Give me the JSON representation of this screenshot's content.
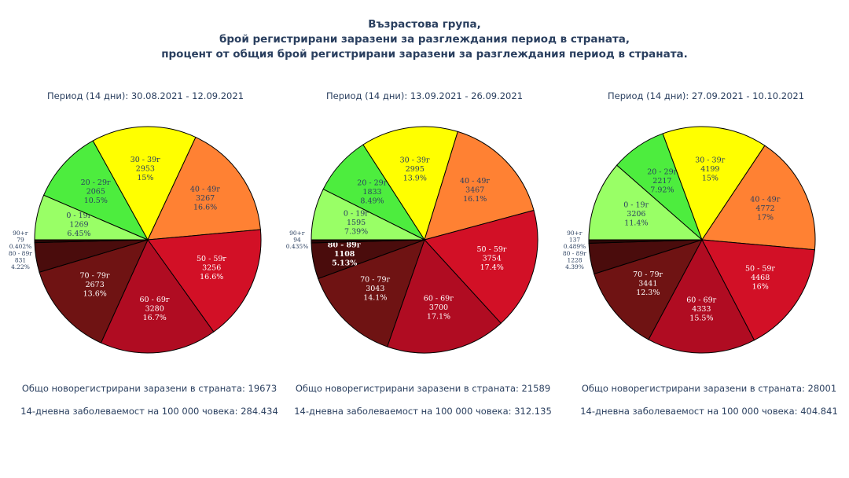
{
  "title": {
    "line1": "Възрастова група,",
    "line2": "брой регистрирани заразени за разглеждания период в страната,",
    "line3": "процент от общия брой регистрирани заразени за разглеждания период в страната."
  },
  "chart_data": [
    {
      "type": "pie",
      "title": "Период (14 дни): 30.08.2021 - 12.09.2021",
      "categories": [
        "0 - 19г",
        "20 - 29г",
        "30 - 39г",
        "40 - 49г",
        "50 - 59г",
        "60 - 69г",
        "70 - 79г",
        "80 - 89г",
        "90+г"
      ],
      "values": [
        1269,
        2065,
        2953,
        3267,
        3256,
        3280,
        2673,
        831,
        79
      ],
      "percents": [
        "6.45%",
        "10.5%",
        "15%",
        "16.6%",
        "16.6%",
        "16.7%",
        "13.6%",
        "4.22%",
        "0.402%"
      ],
      "total_label": "Общо новорегистрирани заразени в страната: 19673",
      "incidence_label": "14-дневна заболеваемост на 100 000 човека: 284.434"
    },
    {
      "type": "pie",
      "title": "Период (14 дни): 13.09.2021 - 26.09.2021",
      "categories": [
        "0 - 19г",
        "20 - 29г",
        "30 - 39г",
        "40 - 49г",
        "50 - 59г",
        "60 - 69г",
        "70 - 79г",
        "80 - 89г",
        "90+г"
      ],
      "values": [
        1595,
        1833,
        2995,
        3467,
        3754,
        3700,
        3043,
        1108,
        94
      ],
      "percents": [
        "7.39%",
        "8.49%",
        "13.9%",
        "16.1%",
        "17.4%",
        "17.1%",
        "14.1%",
        "5.13%",
        "0.435%"
      ],
      "total_label": "Общо новорегистрирани заразени в страната: 21589",
      "incidence_label": "14-дневна заболеваемост на 100 000 човека: 312.135"
    },
    {
      "type": "pie",
      "title": "Период (14 дни): 27.09.2021 - 10.10.2021",
      "categories": [
        "0 - 19г",
        "20 - 29г",
        "30 - 39г",
        "40 - 49г",
        "50 - 59г",
        "60 - 69г",
        "70 - 79г",
        "80 - 89г",
        "90+г"
      ],
      "values": [
        3206,
        2217,
        4199,
        4772,
        4468,
        4333,
        3441,
        1228,
        137
      ],
      "percents": [
        "11.4%",
        "7.92%",
        "15%",
        "17%",
        "16%",
        "15.5%",
        "12.3%",
        "4.39%",
        "0.489%"
      ],
      "total_label": "Общо новорегистрирани заразени в страната: 28001",
      "incidence_label": "14-дневна заболеваемост на 100 000 човека: 404.841"
    }
  ],
  "colors": [
    "#99ff66",
    "#4ded3e",
    "#ffff00",
    "#ff8133",
    "#d21026",
    "#b00c22",
    "#6f1313",
    "#4a0c0c",
    "#2b0707"
  ]
}
